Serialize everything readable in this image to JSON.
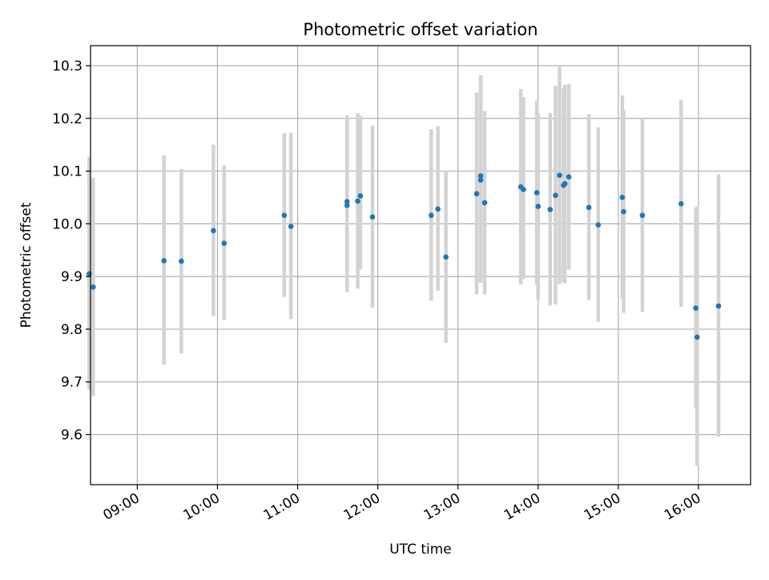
{
  "chart_data": {
    "type": "scatter",
    "title": "Photometric offset variation",
    "xlabel": "UTC time",
    "ylabel": "Photometric offset",
    "xlim": [
      "08:25",
      "16:39"
    ],
    "ylim": [
      9.505,
      10.338
    ],
    "x_ticks": [
      "09:00",
      "10:00",
      "11:00",
      "12:00",
      "13:00",
      "14:00",
      "15:00",
      "16:00"
    ],
    "y_ticks": [
      "9.6",
      "9.7",
      "9.8",
      "9.9",
      "10.0",
      "10.1",
      "10.2",
      "10.3"
    ],
    "grid": true,
    "legend": "none",
    "colors": {
      "marker": "#1f77b4",
      "errorbar": "#d3d3d3",
      "grid": "#b0b0b0"
    },
    "series": [
      {
        "points": [
          {
            "x": "08:24",
            "y": 9.905,
            "ylow": 9.685,
            "yhigh": 10.127
          },
          {
            "x": "08:27",
            "y": 9.88,
            "ylow": 9.673,
            "yhigh": 10.087
          },
          {
            "x": "09:20",
            "y": 9.93,
            "ylow": 9.733,
            "yhigh": 10.13
          },
          {
            "x": "09:33",
            "y": 9.929,
            "ylow": 9.754,
            "yhigh": 10.104
          },
          {
            "x": "09:57",
            "y": 9.987,
            "ylow": 9.825,
            "yhigh": 10.15
          },
          {
            "x": "10:05",
            "y": 9.963,
            "ylow": 9.817,
            "yhigh": 10.111
          },
          {
            "x": "10:50",
            "y": 10.016,
            "ylow": 9.861,
            "yhigh": 10.172
          },
          {
            "x": "10:55",
            "y": 9.995,
            "ylow": 9.819,
            "yhigh": 10.173
          },
          {
            "x": "11:37",
            "y": 10.042,
            "ylow": 9.87,
            "yhigh": 10.206
          },
          {
            "x": "11:37",
            "y": 10.035,
            "ylow": 9.87,
            "yhigh": 10.19
          },
          {
            "x": "11:45",
            "y": 10.043,
            "ylow": 9.877,
            "yhigh": 10.21
          },
          {
            "x": "11:47",
            "y": 10.053,
            "ylow": 9.913,
            "yhigh": 10.205
          },
          {
            "x": "11:56",
            "y": 10.013,
            "ylow": 9.841,
            "yhigh": 10.186
          },
          {
            "x": "12:40",
            "y": 10.016,
            "ylow": 9.854,
            "yhigh": 10.18
          },
          {
            "x": "12:45",
            "y": 10.028,
            "ylow": 9.873,
            "yhigh": 10.185
          },
          {
            "x": "12:51",
            "y": 9.937,
            "ylow": 9.774,
            "yhigh": 10.101
          },
          {
            "x": "13:14",
            "y": 10.057,
            "ylow": 9.866,
            "yhigh": 10.249
          },
          {
            "x": "13:17",
            "y": 10.091,
            "ylow": 9.894,
            "yhigh": 10.282
          },
          {
            "x": "13:17",
            "y": 10.083,
            "ylow": 9.888,
            "yhigh": 10.278
          },
          {
            "x": "13:20",
            "y": 10.04,
            "ylow": 9.866,
            "yhigh": 10.214
          },
          {
            "x": "13:47",
            "y": 10.07,
            "ylow": 9.885,
            "yhigh": 10.256
          },
          {
            "x": "13:49",
            "y": 10.065,
            "ylow": 9.895,
            "yhigh": 10.24
          },
          {
            "x": "13:59",
            "y": 10.059,
            "ylow": 9.884,
            "yhigh": 10.234
          },
          {
            "x": "14:00",
            "y": 10.033,
            "ylow": 9.856,
            "yhigh": 10.21
          },
          {
            "x": "14:09",
            "y": 10.027,
            "ylow": 9.845,
            "yhigh": 10.21
          },
          {
            "x": "14:13",
            "y": 10.054,
            "ylow": 9.847,
            "yhigh": 10.262
          },
          {
            "x": "14:16",
            "y": 10.092,
            "ylow": 9.885,
            "yhigh": 10.298
          },
          {
            "x": "14:19",
            "y": 10.073,
            "ylow": 9.89,
            "yhigh": 10.257
          },
          {
            "x": "14:20",
            "y": 10.076,
            "ylow": 9.887,
            "yhigh": 10.264
          },
          {
            "x": "14:23",
            "y": 10.089,
            "ylow": 9.913,
            "yhigh": 10.265
          },
          {
            "x": "14:38",
            "y": 10.031,
            "ylow": 9.855,
            "yhigh": 10.208
          },
          {
            "x": "14:45",
            "y": 9.998,
            "ylow": 9.814,
            "yhigh": 10.183
          },
          {
            "x": "15:03",
            "y": 10.05,
            "ylow": 9.857,
            "yhigh": 10.244
          },
          {
            "x": "15:04",
            "y": 10.023,
            "ylow": 9.831,
            "yhigh": 10.216
          },
          {
            "x": "15:18",
            "y": 10.016,
            "ylow": 9.833,
            "yhigh": 10.2
          },
          {
            "x": "15:47",
            "y": 10.038,
            "ylow": 9.842,
            "yhigh": 10.235
          },
          {
            "x": "15:58",
            "y": 9.84,
            "ylow": 9.65,
            "yhigh": 10.03
          },
          {
            "x": "15:59",
            "y": 9.785,
            "ylow": 9.541,
            "yhigh": 10.033
          },
          {
            "x": "16:15",
            "y": 9.844,
            "ylow": 9.596,
            "yhigh": 10.094
          }
        ]
      }
    ]
  }
}
